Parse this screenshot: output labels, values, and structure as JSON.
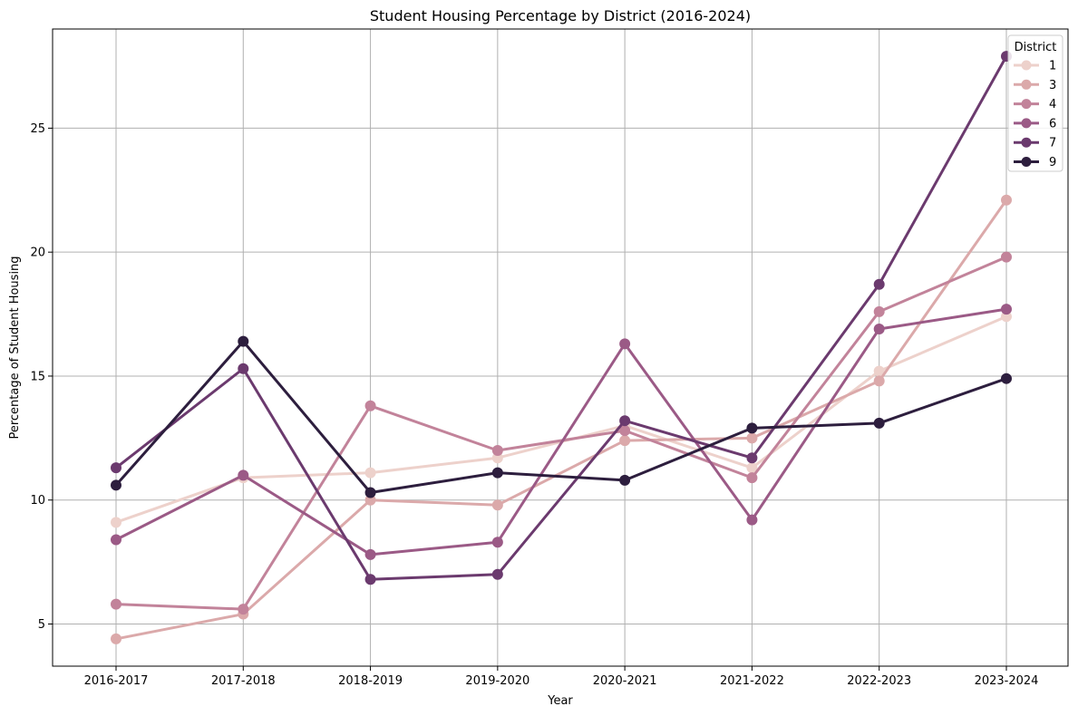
{
  "chart_data": {
    "type": "line",
    "title": "Student Housing Percentage by District (2016-2024)",
    "xlabel": "Year",
    "ylabel": "Percentage of Student Housing",
    "categories": [
      "2016-2017",
      "2017-2018",
      "2018-2019",
      "2019-2020",
      "2020-2021",
      "2021-2022",
      "2022-2023",
      "2023-2024"
    ],
    "ylim": [
      3.3,
      29.0
    ],
    "yticks": [
      5,
      10,
      15,
      20,
      25
    ],
    "grid": true,
    "legend": {
      "title": "District",
      "placement": "top-right"
    },
    "series": [
      {
        "name": "1",
        "color": "#edd1cb",
        "values": [
          9.1,
          10.9,
          11.1,
          11.7,
          13.0,
          11.3,
          15.2,
          17.4
        ]
      },
      {
        "name": "3",
        "color": "#dba9aa",
        "values": [
          4.4,
          5.4,
          10.0,
          9.8,
          12.4,
          12.5,
          14.8,
          22.1
        ]
      },
      {
        "name": "4",
        "color": "#c2839a",
        "values": [
          5.8,
          5.6,
          13.8,
          12.0,
          12.8,
          10.9,
          17.6,
          19.8
        ]
      },
      {
        "name": "6",
        "color": "#9b5a86",
        "values": [
          8.4,
          11.0,
          7.8,
          8.3,
          16.3,
          9.2,
          16.9,
          17.7
        ]
      },
      {
        "name": "7",
        "color": "#6b3a6e",
        "values": [
          11.3,
          15.3,
          6.8,
          7.0,
          13.2,
          11.7,
          18.7,
          27.9
        ]
      },
      {
        "name": "9",
        "color": "#2d1e3e",
        "values": [
          10.6,
          16.4,
          10.3,
          11.1,
          10.8,
          12.9,
          13.1,
          14.9
        ]
      }
    ]
  }
}
